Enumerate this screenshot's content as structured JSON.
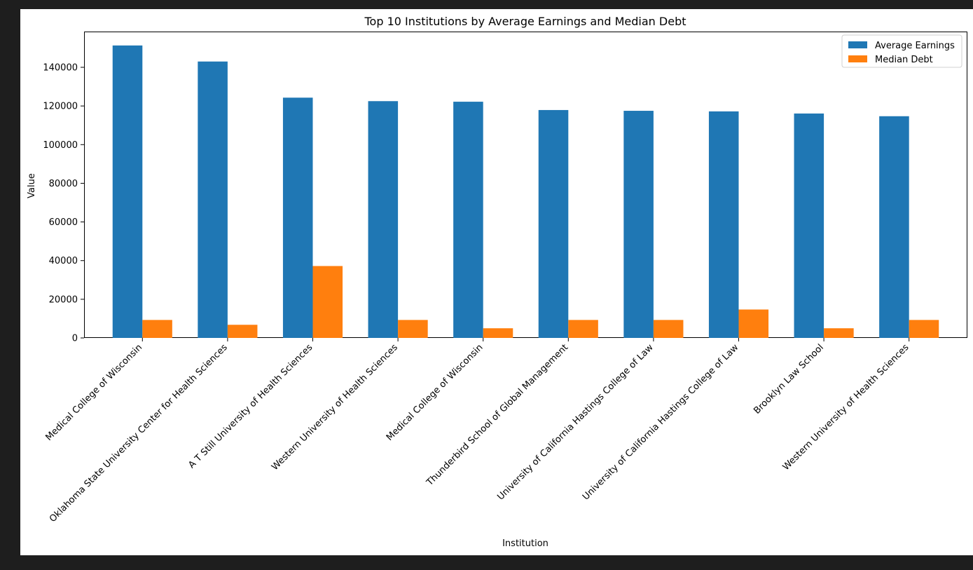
{
  "figure": {
    "background": "#ffffff",
    "page_background": "#1e1e1e"
  },
  "chart_data": {
    "type": "bar",
    "title": "Top 10 Institutions by Average Earnings and Median Debt",
    "xlabel": "Institution",
    "ylabel": "Value",
    "categories": [
      "Medical College of Wisconsin",
      "Oklahoma State University Center for Health Sciences",
      "A T Still University of Health Sciences",
      "Western University of Health Sciences",
      "Medical College of Wisconsin",
      "Thunderbird School of Global Management",
      "University of California Hastings College of Law",
      "University of California Hastings College of Law",
      "Brooklyn Law School",
      "Western University of Health Sciences"
    ],
    "series": [
      {
        "name": "Average Earnings",
        "color": "#1f77b4",
        "values": [
          151300,
          143000,
          124300,
          122500,
          122200,
          117900,
          117500,
          117200,
          116100,
          114700
        ]
      },
      {
        "name": "Median Debt",
        "color": "#ff7f0e",
        "values": [
          9300,
          6800,
          37200,
          9300,
          5000,
          9300,
          9300,
          14700,
          5000,
          9300
        ]
      }
    ],
    "ylim": [
      0,
      158500
    ],
    "yticks": [
      0,
      20000,
      40000,
      60000,
      80000,
      100000,
      120000,
      140000
    ],
    "ytick_labels": [
      "0",
      "20000",
      "40000",
      "60000",
      "80000",
      "100000",
      "120000",
      "140000"
    ],
    "legend_position": "top-right",
    "grid": false
  }
}
